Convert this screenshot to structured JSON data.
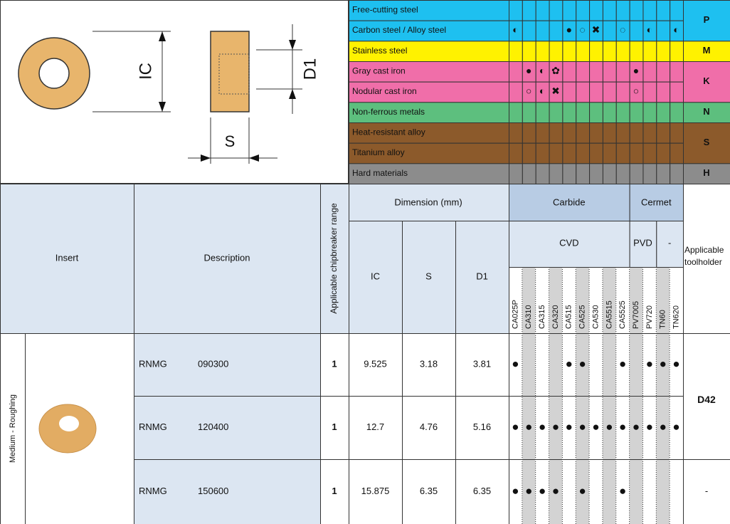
{
  "diagram": {
    "labels": [
      "IC",
      "D1",
      "S"
    ]
  },
  "groups": [
    {
      "letter": "P",
      "color": "#1ec0f0",
      "text_color": "#111",
      "materials": [
        {
          "name": "Free-cutting steel",
          "marks": {}
        },
        {
          "name": "Carbon steel / Alloy steel",
          "marks": {
            "CA025P": "◐",
            "CA515": "●",
            "CA525": "◌",
            "CA530": "✖",
            "CA5525": "◌",
            "PV720": "◐",
            "TN620": "◐"
          }
        }
      ]
    },
    {
      "letter": "M",
      "color": "#fff200",
      "text_color": "#111",
      "materials": [
        {
          "name": "Stainless steel",
          "marks": {}
        }
      ]
    },
    {
      "letter": "K",
      "color": "#f06ea9",
      "text_color": "#fff",
      "materials": [
        {
          "name": "Gray cast iron",
          "marks": {
            "CA310": "●",
            "CA315": "◐",
            "CA320": "✿",
            "PV7005": "●"
          }
        },
        {
          "name": "Nodular cast iron",
          "marks": {
            "CA310": "○",
            "CA315": "◐",
            "CA320": "✖",
            "PV7005": "○"
          }
        }
      ]
    },
    {
      "letter": "N",
      "color": "#5dbf7e",
      "text_color": "#fff",
      "materials": [
        {
          "name": "Non-ferrous metals",
          "marks": {}
        }
      ]
    },
    {
      "letter": "S",
      "color": "#8c5a2b",
      "text_color": "#fff",
      "materials": [
        {
          "name": "Heat-resistant alloy",
          "marks": {}
        },
        {
          "name": "Titanium alloy",
          "marks": {}
        }
      ]
    },
    {
      "letter": "H",
      "color": "#8c8c8c",
      "text_color": "#fff",
      "materials": [
        {
          "name": "Hard materials",
          "marks": {}
        }
      ]
    }
  ],
  "header": {
    "insert": "Insert",
    "description": "Description",
    "chipbreaker": "Applicable chipbreaker range",
    "dimension": "Dimension (mm)",
    "dims": [
      "IC",
      "S",
      "D1"
    ],
    "toolholder": [
      "Applicable",
      "toolholder"
    ]
  },
  "grade_families": [
    {
      "label": "Carbide",
      "subgroups": [
        {
          "label": "CVD",
          "grades": [
            "CA025P",
            "CA310",
            "CA315",
            "CA320",
            "CA515",
            "CA525",
            "CA530",
            "CA5515",
            "CA5525"
          ]
        }
      ]
    },
    {
      "label": "Cermet",
      "subgroups": [
        {
          "label": "PVD",
          "grades": [
            "PV7005",
            "PV720"
          ]
        },
        {
          "label": "-",
          "grades": [
            "TN60",
            "TN620"
          ]
        }
      ]
    }
  ],
  "section": "Medium - Roughing",
  "inserts": [
    {
      "code": "RNMG",
      "size": "090300",
      "chipbreaker": "1",
      "dims": [
        "9.525",
        "3.18",
        "3.81"
      ],
      "marks": {
        "CA025P": "●",
        "CA515": "●",
        "CA525": "●",
        "CA5525": "●",
        "PV720": "●",
        "TN60": "●",
        "TN620": "●"
      }
    },
    {
      "code": "RNMG",
      "size": "120400",
      "chipbreaker": "1",
      "dims": [
        "12.7",
        "4.76",
        "5.16"
      ],
      "marks": {
        "CA025P": "●",
        "CA310": "●",
        "CA315": "●",
        "CA320": "●",
        "CA515": "●",
        "CA525": "●",
        "CA530": "●",
        "CA5515": "●",
        "CA5525": "●",
        "PV7005": "●",
        "PV720": "●",
        "TN60": "●",
        "TN620": "●"
      }
    },
    {
      "code": "RNMG",
      "size": "150600",
      "chipbreaker": "1",
      "dims": [
        "15.875",
        "6.35",
        "6.35"
      ],
      "marks": {
        "CA025P": "●",
        "CA310": "●",
        "CA315": "●",
        "CA320": "●",
        "CA525": "●",
        "CA5525": "●"
      }
    }
  ],
  "toolholders": [
    "D42",
    "-"
  ]
}
